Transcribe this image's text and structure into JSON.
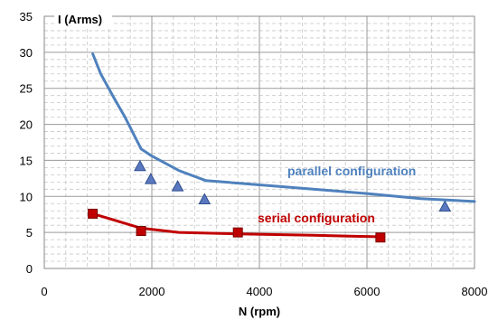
{
  "chart_data": {
    "type": "line",
    "xlabel": "N (rpm)",
    "ylabel": "I (Arms)",
    "xlim": [
      0,
      8000
    ],
    "ylim": [
      0,
      35
    ],
    "xticks": [
      "0",
      "2000",
      "4000",
      "6000",
      "8000"
    ],
    "yticks": [
      "0",
      "5",
      "10",
      "15",
      "20",
      "25",
      "30",
      "35"
    ],
    "grid": true,
    "colors": {
      "parallel": "#4f81bd",
      "serial": "#c00000",
      "marker_parallel": "#5a78c0",
      "marker_serial": "#c00000"
    },
    "series": [
      {
        "name": "parallel configuration",
        "style": "line",
        "points": [
          [
            900,
            29.8
          ],
          [
            1050,
            27
          ],
          [
            1300,
            23.6
          ],
          [
            1500,
            21
          ],
          [
            1800,
            16.6
          ],
          [
            2000,
            15.6
          ],
          [
            2500,
            13.6
          ],
          [
            3000,
            12.2
          ],
          [
            4000,
            11.6
          ],
          [
            5000,
            11
          ],
          [
            6000,
            10.4
          ],
          [
            7000,
            9.7
          ],
          [
            8000,
            9.3
          ]
        ]
      },
      {
        "name": "serial configuration",
        "style": "line",
        "points": [
          [
            900,
            7.6
          ],
          [
            1800,
            5.6
          ],
          [
            2500,
            5
          ],
          [
            3600,
            4.8
          ],
          [
            5000,
            4.6
          ],
          [
            6200,
            4.4
          ]
        ]
      },
      {
        "style": "triangle-markers",
        "points": [
          [
            1780,
            14.2
          ],
          [
            1980,
            12.4
          ],
          [
            2480,
            11.4
          ],
          [
            2980,
            9.6
          ],
          [
            7450,
            8.6
          ]
        ]
      },
      {
        "style": "square-markers",
        "points": [
          [
            900,
            7.6
          ],
          [
            1800,
            5.2
          ],
          [
            3600,
            5.0
          ],
          [
            6250,
            4.3
          ]
        ]
      }
    ]
  }
}
